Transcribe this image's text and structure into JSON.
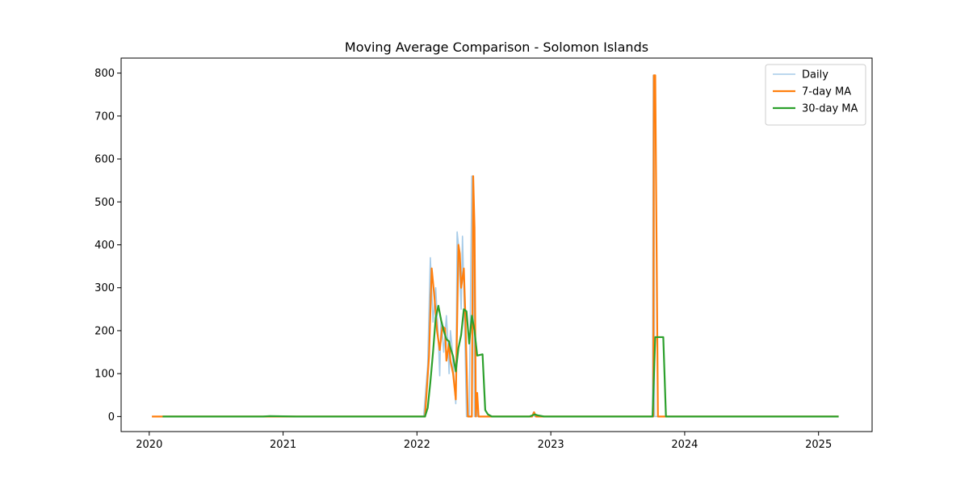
{
  "chart_data": {
    "type": "line",
    "title": "Moving Average Comparison - Solomon Islands",
    "xlabel": "",
    "ylabel": "",
    "x_ticks": [
      "2020",
      "2021",
      "2022",
      "2023",
      "2024",
      "2025"
    ],
    "y_ticks": [
      "0",
      "100",
      "200",
      "300",
      "400",
      "500",
      "600",
      "700",
      "800"
    ],
    "ylim": [
      -35,
      835
    ],
    "xlim": [
      2019.79,
      2025.4
    ],
    "legend_position": "top-right",
    "grid": false,
    "series": [
      {
        "name": "Daily",
        "color": "#a6cbe8",
        "points": [
          [
            2020.02,
            0
          ],
          [
            2022.05,
            0
          ],
          [
            2022.08,
            120
          ],
          [
            2022.1,
            370
          ],
          [
            2022.12,
            220
          ],
          [
            2022.14,
            300
          ],
          [
            2022.16,
            180
          ],
          [
            2022.17,
            95
          ],
          [
            2022.18,
            230
          ],
          [
            2022.2,
            150
          ],
          [
            2022.22,
            235
          ],
          [
            2022.23,
            180
          ],
          [
            2022.24,
            100
          ],
          [
            2022.25,
            200
          ],
          [
            2022.26,
            170
          ],
          [
            2022.27,
            120
          ],
          [
            2022.29,
            30
          ],
          [
            2022.3,
            430
          ],
          [
            2022.31,
            400
          ],
          [
            2022.33,
            250
          ],
          [
            2022.34,
            420
          ],
          [
            2022.35,
            300
          ],
          [
            2022.37,
            0
          ],
          [
            2022.38,
            0
          ],
          [
            2022.39,
            0
          ],
          [
            2022.41,
            560
          ],
          [
            2022.42,
            560
          ],
          [
            2022.43,
            0
          ],
          [
            2022.44,
            50
          ],
          [
            2022.45,
            0
          ],
          [
            2022.47,
            0
          ],
          [
            2022.86,
            0
          ],
          [
            2022.87,
            10
          ],
          [
            2022.88,
            0
          ],
          [
            2023.76,
            0
          ],
          [
            2023.765,
            795
          ],
          [
            2023.77,
            795
          ],
          [
            2023.775,
            0
          ],
          [
            2025.15,
            0
          ]
        ]
      },
      {
        "name": "7-day MA",
        "color": "#ff7f0e",
        "points": [
          [
            2020.02,
            0
          ],
          [
            2022.06,
            0
          ],
          [
            2022.09,
            140
          ],
          [
            2022.11,
            345
          ],
          [
            2022.13,
            280
          ],
          [
            2022.15,
            200
          ],
          [
            2022.17,
            155
          ],
          [
            2022.19,
            210
          ],
          [
            2022.21,
            205
          ],
          [
            2022.22,
            130
          ],
          [
            2022.24,
            170
          ],
          [
            2022.25,
            130
          ],
          [
            2022.27,
            100
          ],
          [
            2022.29,
            40
          ],
          [
            2022.31,
            400
          ],
          [
            2022.32,
            380
          ],
          [
            2022.33,
            300
          ],
          [
            2022.35,
            345
          ],
          [
            2022.36,
            250
          ],
          [
            2022.38,
            0
          ],
          [
            2022.39,
            0
          ],
          [
            2022.41,
            0
          ],
          [
            2022.42,
            560
          ],
          [
            2022.43,
            440
          ],
          [
            2022.44,
            0
          ],
          [
            2022.45,
            55
          ],
          [
            2022.46,
            0
          ],
          [
            2022.48,
            0
          ],
          [
            2022.86,
            0
          ],
          [
            2022.875,
            10
          ],
          [
            2022.89,
            0
          ],
          [
            2023.765,
            0
          ],
          [
            2023.77,
            795
          ],
          [
            2023.78,
            795
          ],
          [
            2023.8,
            0
          ],
          [
            2025.15,
            0
          ]
        ]
      },
      {
        "name": "30-day MA",
        "color": "#2ca02c",
        "points": [
          [
            2020.1,
            0
          ],
          [
            2020.85,
            0
          ],
          [
            2020.9,
            1
          ],
          [
            2021.1,
            0
          ],
          [
            2022.06,
            0
          ],
          [
            2022.08,
            20
          ],
          [
            2022.1,
            80
          ],
          [
            2022.12,
            150
          ],
          [
            2022.14,
            230
          ],
          [
            2022.16,
            258
          ],
          [
            2022.18,
            225
          ],
          [
            2022.2,
            200
          ],
          [
            2022.22,
            180
          ],
          [
            2022.24,
            175
          ],
          [
            2022.25,
            160
          ],
          [
            2022.27,
            140
          ],
          [
            2022.29,
            105
          ],
          [
            2022.31,
            160
          ],
          [
            2022.33,
            190
          ],
          [
            2022.35,
            250
          ],
          [
            2022.37,
            245
          ],
          [
            2022.39,
            170
          ],
          [
            2022.41,
            235
          ],
          [
            2022.43,
            200
          ],
          [
            2022.45,
            142
          ],
          [
            2022.49,
            145
          ],
          [
            2022.51,
            15
          ],
          [
            2022.53,
            5
          ],
          [
            2022.56,
            0
          ],
          [
            2022.84,
            0
          ],
          [
            2022.88,
            5
          ],
          [
            2022.9,
            3
          ],
          [
            2022.95,
            0
          ],
          [
            2023.76,
            0
          ],
          [
            2023.78,
            185
          ],
          [
            2023.84,
            185
          ],
          [
            2023.86,
            0
          ],
          [
            2025.15,
            0
          ]
        ]
      }
    ]
  }
}
